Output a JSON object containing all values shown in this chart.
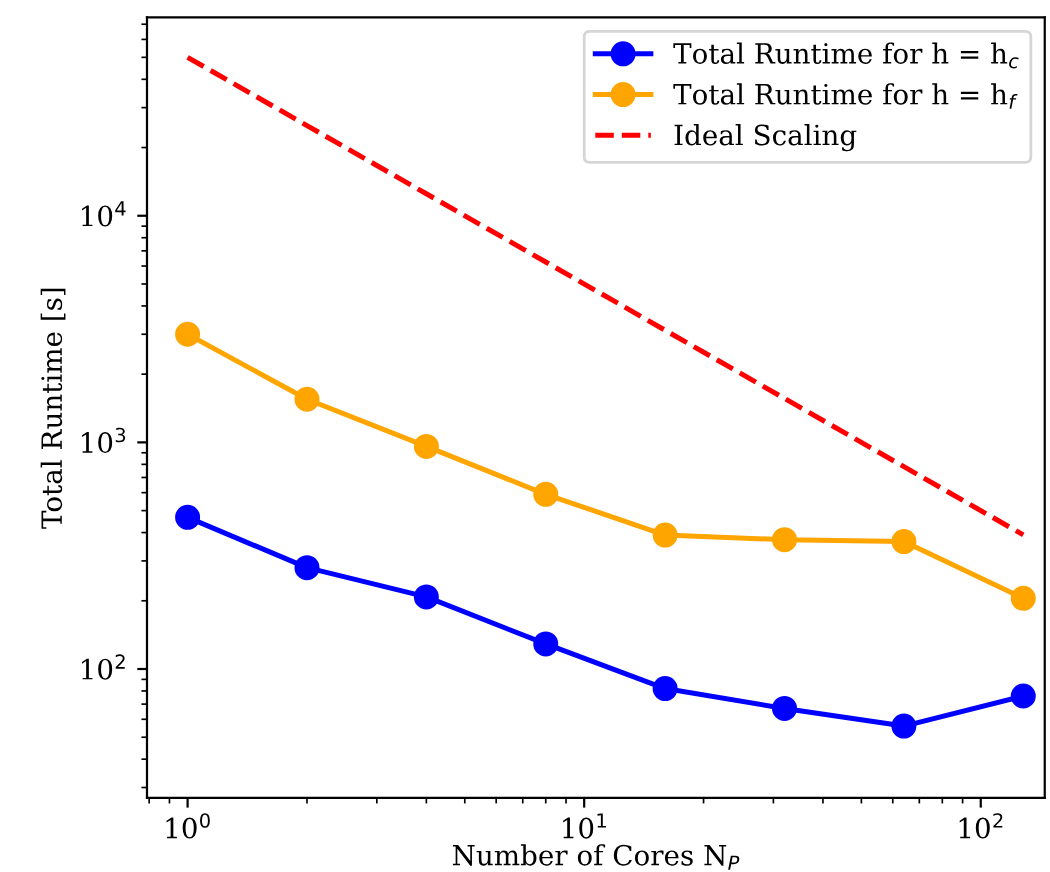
{
  "chart_data": {
    "type": "line",
    "xlabel": "Number of Cores N$_{P}$",
    "ylabel": "Total Runtime [s]",
    "log": "xy",
    "legend": "top right",
    "marker": "circle",
    "grid": false,
    "x": [
      1,
      2,
      4,
      8,
      16,
      32,
      64,
      128
    ],
    "xlim": [
      0.79,
      145
    ],
    "ylim": [
      27,
      75000
    ],
    "xticks": [
      {
        "value": 1,
        "label": "10$^{0}$"
      },
      {
        "value": 10,
        "label": "10$^{1}$"
      },
      {
        "value": 100,
        "label": "10$^{2}$"
      }
    ],
    "yticks": [
      {
        "value": 100,
        "label": "10$^{2}$"
      },
      {
        "value": 1000,
        "label": "10$^{3}$"
      },
      {
        "value": 10000,
        "label": "10$^{4}$"
      }
    ],
    "series": [
      {
        "name": "Total Runtime for h = h$_{c}$",
        "color": "#0000ff",
        "values": [
          467,
          280,
          208,
          129,
          82,
          67,
          56,
          76
        ]
      },
      {
        "name": "Total Runtime for h = h$_{f}$",
        "color": "#ffa500",
        "values": [
          3000,
          1550,
          960,
          590,
          390,
          372,
          365,
          205
        ]
      },
      {
        "name": "Ideal Scaling",
        "color": "#ff0000",
        "values": [
          50000,
          25000,
          12500,
          6250,
          3125,
          1562.5,
          781.25,
          390.625
        ],
        "marker": "none",
        "line_style": "dashed"
      }
    ]
  }
}
